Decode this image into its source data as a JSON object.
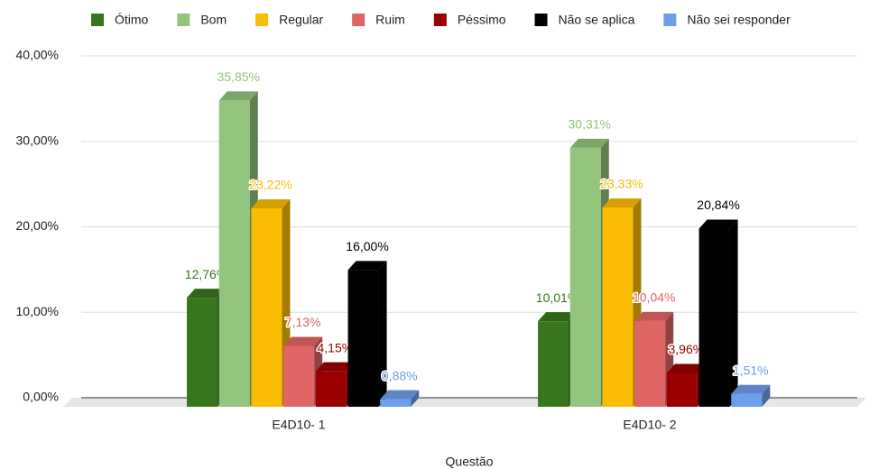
{
  "chart_data": {
    "type": "bar3d",
    "x_label": "Questão",
    "categories": [
      "E4D10- 1",
      "E4D10- 2"
    ],
    "series": [
      {
        "name": "Ótimo",
        "color": "#38761d",
        "values": [
          12.76,
          10.01
        ],
        "value_labels": [
          "12,76%",
          "10,01%"
        ]
      },
      {
        "name": "Bom",
        "color": "#93c47d",
        "values": [
          35.85,
          30.31
        ],
        "value_labels": [
          "35,85%",
          "30,31%"
        ]
      },
      {
        "name": "Regular",
        "color": "#fbbc04",
        "values": [
          23.22,
          23.33
        ],
        "value_labels": [
          "23,22%",
          "23,33%"
        ]
      },
      {
        "name": "Ruim",
        "color": "#e06666",
        "values": [
          7.13,
          10.04
        ],
        "value_labels": [
          "7,13%",
          "10,04%"
        ]
      },
      {
        "name": "Péssimo",
        "color": "#990000",
        "values": [
          4.15,
          3.96
        ],
        "value_labels": [
          "4,15%",
          "3,96%"
        ]
      },
      {
        "name": "Não se aplica",
        "color": "#000000",
        "values": [
          16.0,
          20.84
        ],
        "value_labels": [
          "16,00%",
          "20,84%"
        ]
      },
      {
        "name": "Não sei responder",
        "color": "#6d9eeb",
        "values": [
          0.88,
          1.51
        ],
        "value_labels": [
          "0,88%",
          "1,51%"
        ]
      }
    ],
    "ylim": [
      0,
      40
    ],
    "yticks": [
      {
        "value": 0,
        "label": "0,00%"
      },
      {
        "value": 10,
        "label": "10,00%"
      },
      {
        "value": 20,
        "label": "20,00%"
      },
      {
        "value": 30,
        "label": "30,00%"
      },
      {
        "value": 40,
        "label": "40,00%"
      }
    ],
    "grid": true,
    "legend": "top"
  }
}
